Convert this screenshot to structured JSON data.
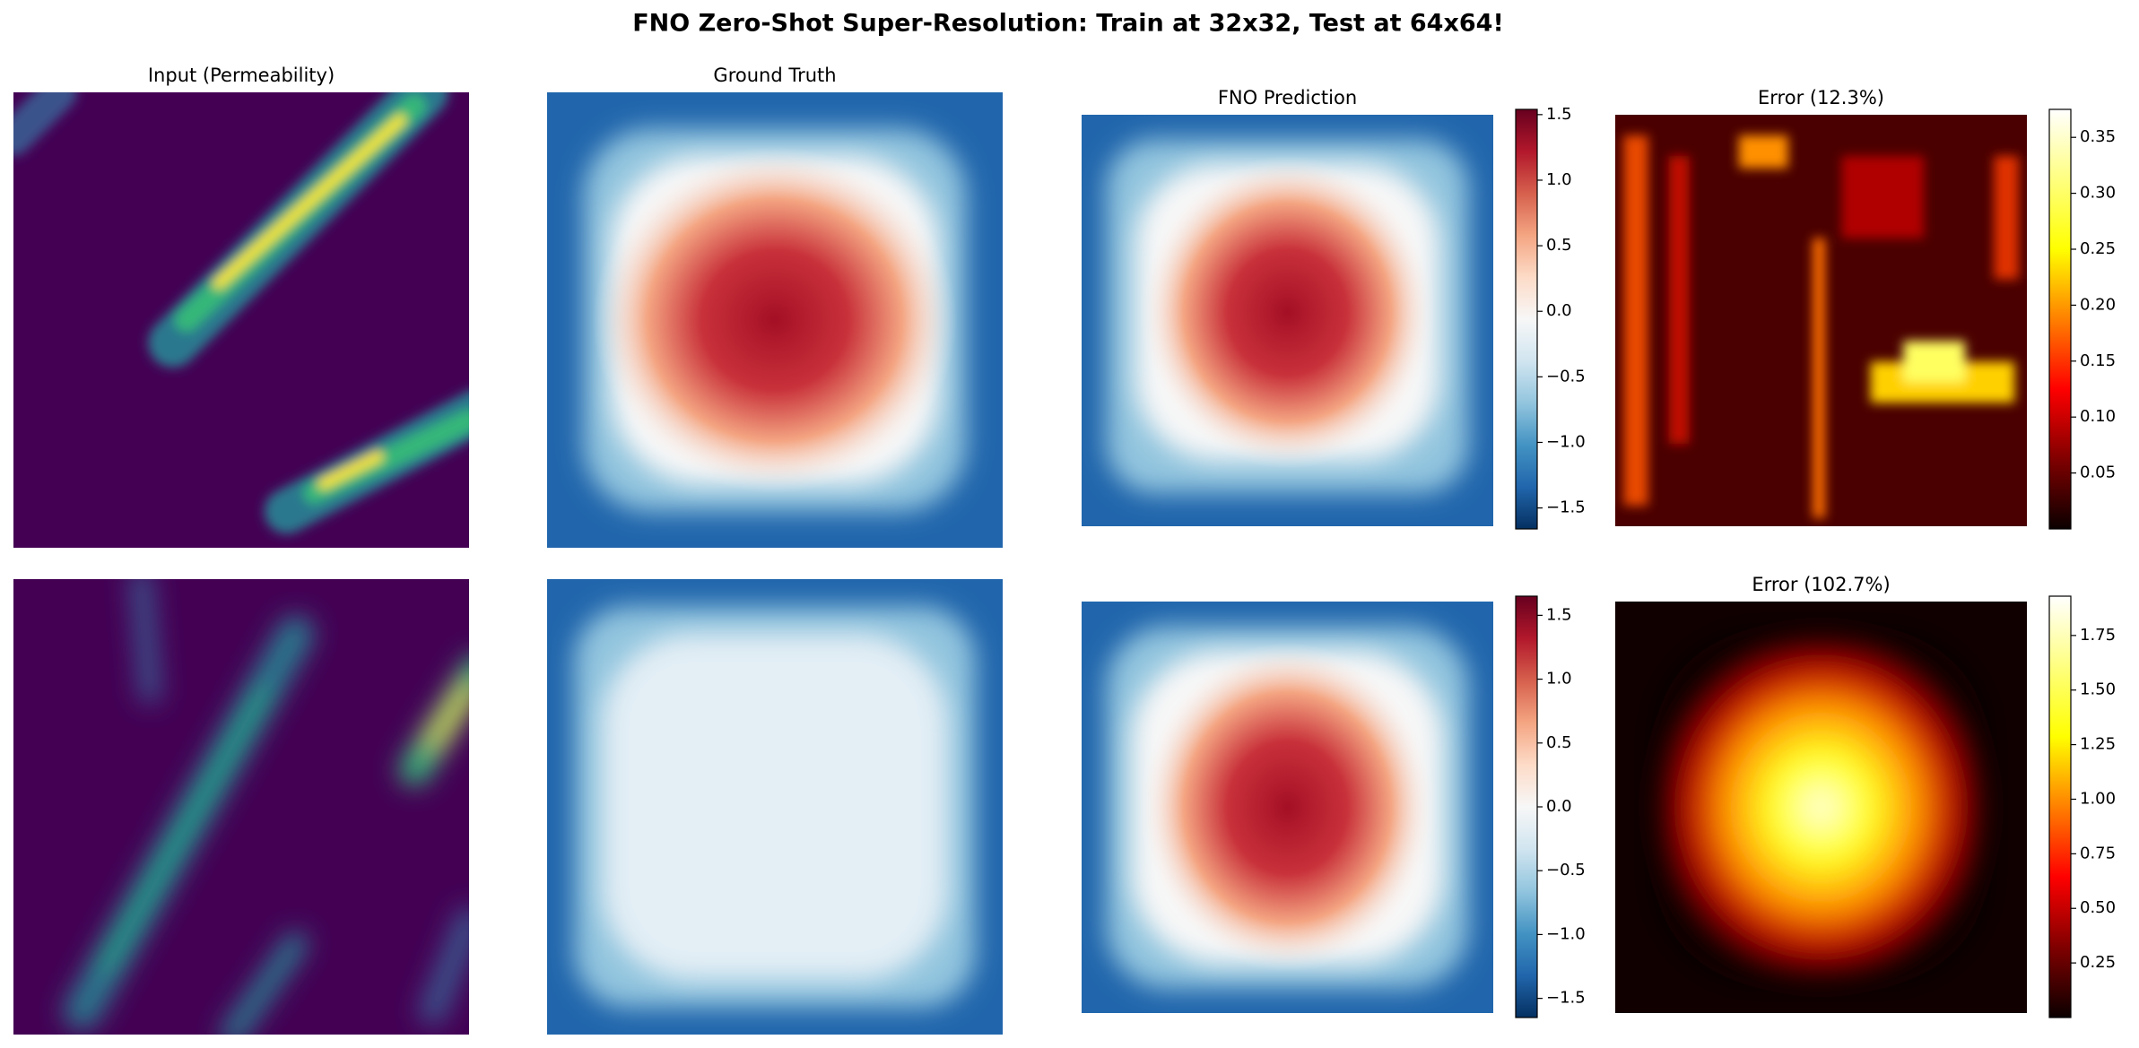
{
  "title": "FNO Zero-Shot Super-Resolution: Train at 32x32, Test at 64x64!",
  "chart_data": [
    {
      "type": "heatmap",
      "title": "Input (Permeability)"
    },
    {
      "type": "heatmap",
      "title": "Ground Truth"
    },
    {
      "type": "heatmap",
      "title": "FNO Prediction",
      "colorbar": {
        "colormap": [
          "#053061",
          "#2166ac",
          "#4393c3",
          "#92c5de",
          "#d1e5f0",
          "#f7f7f7",
          "#fddbc7",
          "#f4a582",
          "#d6604d",
          "#b2182b",
          "#67001f"
        ],
        "ylim": [
          -1.66,
          1.54
        ],
        "yticks": [
          {
            "value": -1.5,
            "label": "−1.5"
          },
          {
            "value": -1,
            "label": "−1.0"
          },
          {
            "value": -0.5,
            "label": "−0.5"
          },
          {
            "value": 0,
            "label": "0.0"
          },
          0.5,
          {
            "value": 1,
            "label": "1.0"
          },
          1.5
        ]
      }
    },
    {
      "type": "heatmap",
      "title": "Error (12.3%)",
      "colorbar": {
        "colormap": [
          "#0b0000",
          "#800000",
          "#ff0000",
          "#ff8000",
          "#ffff00",
          "#ffff80",
          "#ffffff"
        ],
        "ylim": [
          0,
          0.375
        ],
        "yticks": [
          0.05,
          {
            "value": 0.1,
            "label": "0.10"
          },
          0.15,
          {
            "value": 0.2,
            "label": "0.20"
          },
          0.25,
          {
            "value": 0.3,
            "label": "0.30"
          },
          0.35
        ]
      }
    },
    {
      "type": "heatmap"
    },
    {
      "type": "heatmap"
    },
    {
      "type": "heatmap",
      "colorbar": {
        "colormap": [
          "#053061",
          "#2166ac",
          "#4393c3",
          "#92c5de",
          "#d1e5f0",
          "#f7f7f7",
          "#fddbc7",
          "#f4a582",
          "#d6604d",
          "#b2182b",
          "#67001f"
        ],
        "ylim": [
          -1.65,
          1.65
        ],
        "yticks": [
          {
            "value": -1.5,
            "label": "−1.5"
          },
          {
            "value": -1,
            "label": "−1.0"
          },
          {
            "value": -0.5,
            "label": "−0.5"
          },
          {
            "value": 0,
            "label": "0.0"
          },
          0.5,
          {
            "value": 1,
            "label": "1.0"
          },
          1.5
        ]
      }
    },
    {
      "type": "heatmap",
      "title": "Error (102.7%)",
      "colorbar": {
        "colormap": [
          "#0b0000",
          "#800000",
          "#ff0000",
          "#ff8000",
          "#ffff00",
          "#ffff80",
          "#ffffff"
        ],
        "ylim": [
          0,
          1.93
        ],
        "yticks": [
          0.25,
          {
            "value": 0.5,
            "label": "0.50"
          },
          0.75,
          {
            "value": 1,
            "label": "1.00"
          },
          1.25,
          {
            "value": 1.5,
            "label": "1.50"
          },
          1.75
        ]
      }
    }
  ]
}
